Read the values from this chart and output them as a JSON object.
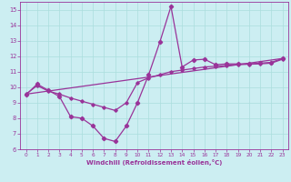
{
  "xlabel": "Windchill (Refroidissement éolien,°C)",
  "bg_color": "#cceef2",
  "grid_color": "#aadddd",
  "line_color": "#993399",
  "xlim": [
    -0.5,
    23.5
  ],
  "ylim": [
    6,
    15.5
  ],
  "yticks": [
    6,
    7,
    8,
    9,
    10,
    11,
    12,
    13,
    14,
    15
  ],
  "xticks": [
    0,
    1,
    2,
    3,
    4,
    5,
    6,
    7,
    8,
    9,
    10,
    11,
    12,
    13,
    14,
    15,
    16,
    17,
    18,
    19,
    20,
    21,
    22,
    23
  ],
  "wavy_x": [
    0,
    1,
    2,
    3,
    4,
    5,
    6,
    7,
    8,
    9,
    10,
    11,
    12,
    13,
    14,
    15,
    16,
    17,
    18,
    19,
    20,
    21,
    22,
    23
  ],
  "wavy_y": [
    9.5,
    10.2,
    9.8,
    9.4,
    8.1,
    8.0,
    7.5,
    6.7,
    6.5,
    7.5,
    9.0,
    10.8,
    12.9,
    15.2,
    11.3,
    11.75,
    11.8,
    11.45,
    11.5,
    11.5,
    11.5,
    11.55,
    11.6,
    11.85
  ],
  "smooth_x": [
    0,
    1,
    2,
    3,
    4,
    5,
    6,
    7,
    8,
    9,
    10,
    11,
    12,
    13,
    14,
    15,
    16,
    17,
    18,
    19,
    20,
    21,
    22,
    23
  ],
  "smooth_y": [
    9.55,
    10.1,
    9.75,
    9.55,
    9.3,
    9.1,
    8.9,
    8.7,
    8.5,
    9.0,
    10.3,
    10.6,
    10.8,
    11.0,
    11.1,
    11.2,
    11.3,
    11.35,
    11.4,
    11.45,
    11.48,
    11.5,
    11.55,
    11.8
  ],
  "trend_x": [
    0,
    23
  ],
  "trend_y": [
    9.55,
    11.85
  ]
}
